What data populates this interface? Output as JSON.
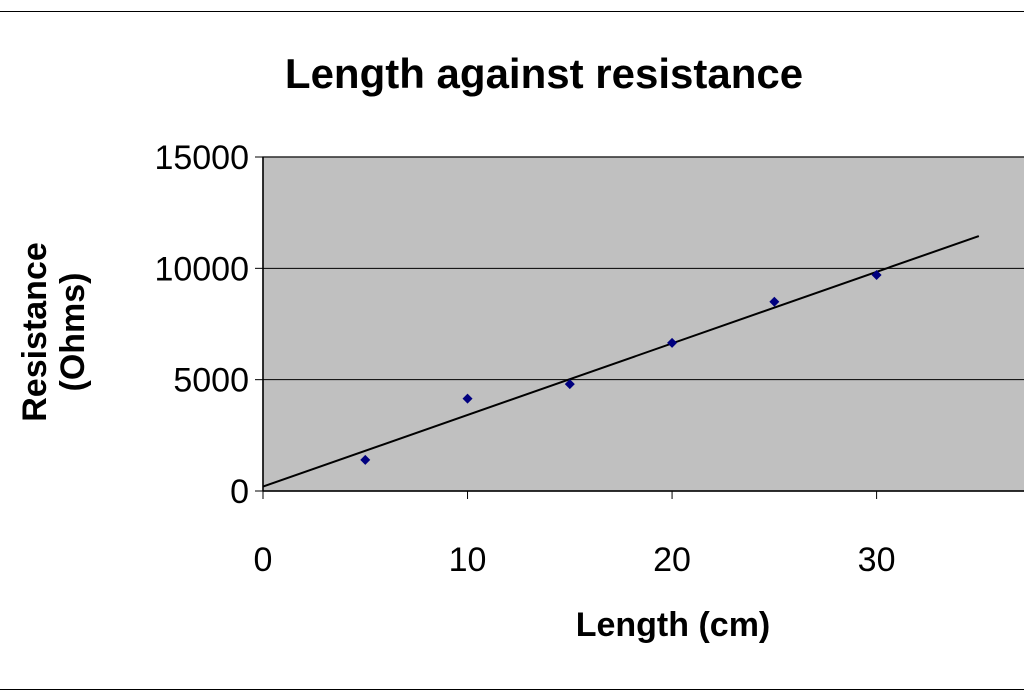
{
  "chart_data": {
    "type": "scatter",
    "title": "Length against resistance",
    "xlabel": "Length (cm)",
    "ylabel_line1": "Resistance",
    "ylabel_line2": "(Ohms)",
    "xlim": [
      0,
      37.5
    ],
    "ylim": [
      0,
      15000
    ],
    "xticks": [
      0,
      10,
      20,
      30
    ],
    "yticks": [
      0,
      5000,
      10000,
      15000
    ],
    "grid": true,
    "legend": "none",
    "plot_background": "#c0c0c0",
    "marker_color": "#00007f",
    "series": [
      {
        "x": [
          5,
          10,
          15,
          20,
          25,
          30
        ],
        "y": [
          1400,
          4150,
          4800,
          6650,
          8500,
          9700
        ]
      }
    ],
    "trendline": {
      "x": [
        0,
        35
      ],
      "y": [
        200,
        11450
      ],
      "color": "#000000"
    }
  }
}
